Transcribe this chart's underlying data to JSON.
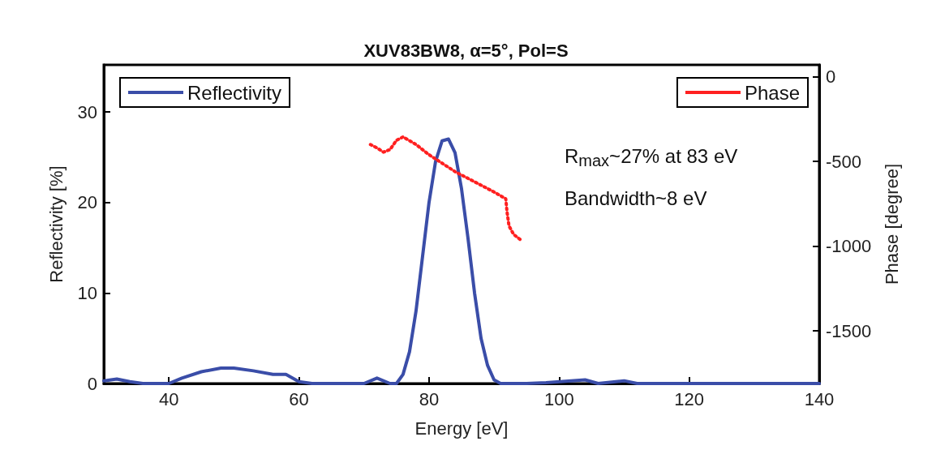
{
  "chart_data": {
    "type": "line",
    "title": "XUV83BW8, α=5°, Pol=S",
    "xlabel": "Energy [eV]",
    "ylabel": "Reflectivity [%]",
    "y2label": "Phase [degree]",
    "xlim": [
      30,
      140
    ],
    "xticks": [
      40,
      60,
      80,
      100,
      120,
      140
    ],
    "ylim": [
      0,
      35.2
    ],
    "yticks": [
      0,
      10,
      20,
      30
    ],
    "y2lim": [
      -1810,
      70
    ],
    "y2ticks": [
      0,
      -500,
      -1000,
      -1500
    ],
    "legend": "top",
    "grid": false,
    "annotations": [
      "R$_{max}$~27% at 83 eV",
      "Bandwidth~8 eV"
    ],
    "series": [
      {
        "name": "Reflectivity",
        "color": "#3a4da8",
        "line_style": "solid",
        "x": [
          30,
          32,
          34,
          36,
          40,
          42,
          45,
          48,
          50,
          53,
          56,
          58,
          60,
          62,
          70,
          72,
          74,
          75,
          76,
          77,
          78,
          79,
          80,
          81,
          82,
          83,
          84,
          85,
          86,
          87,
          88,
          89,
          90,
          91,
          95,
          98,
          104,
          106,
          110,
          112,
          120,
          140
        ],
        "values": [
          0.3,
          0.5,
          0.2,
          0,
          0,
          0.6,
          1.3,
          1.7,
          1.7,
          1.4,
          1.0,
          1.0,
          0.2,
          0,
          0,
          0.6,
          0,
          0,
          1,
          3.5,
          8,
          14,
          20,
          24.5,
          26.8,
          27,
          25.5,
          21.5,
          16,
          10,
          5,
          2,
          0.4,
          0,
          0,
          0.1,
          0.4,
          0,
          0.3,
          0,
          0,
          0
        ]
      },
      {
        "name": "Phase",
        "color": "#ff2020",
        "line_style": "dotted",
        "axis": "y2",
        "x": [
          71,
          72,
          73,
          74,
          75,
          76,
          78,
          80,
          82,
          84,
          86,
          88,
          90,
          91.8,
          92,
          92.3,
          93,
          94
        ],
        "values": [
          -400,
          -420,
          -445,
          -430,
          -375,
          -355,
          -400,
          -460,
          -510,
          -560,
          -600,
          -640,
          -680,
          -720,
          -800,
          -880,
          -930,
          -960
        ]
      }
    ]
  }
}
